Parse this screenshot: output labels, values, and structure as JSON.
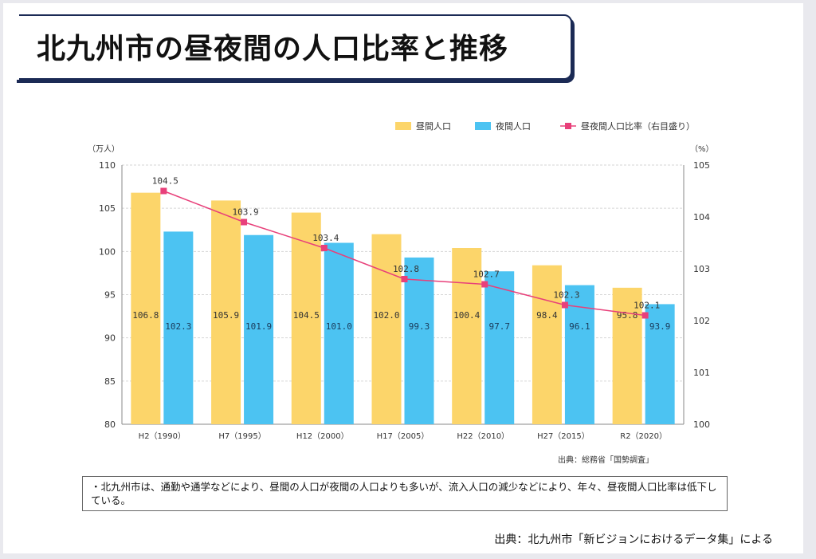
{
  "title": "北九州市の昼夜間の人口比率と推移",
  "chart_data": {
    "type": "bar+line",
    "categories": [
      "H2（1990）",
      "H7（1995）",
      "H12（2000）",
      "H17（2005）",
      "H22（2010）",
      "H27（2015）",
      "R2（2020）"
    ],
    "series": [
      {
        "name": "昼間人口",
        "kind": "bar",
        "axis": "left",
        "color": "#fcd56a",
        "values": [
          106.8,
          105.9,
          104.5,
          102.0,
          100.4,
          98.4,
          95.8
        ]
      },
      {
        "name": "夜間人口",
        "kind": "bar",
        "axis": "left",
        "color": "#4cc3f2",
        "values": [
          102.3,
          101.9,
          101.0,
          99.3,
          97.7,
          96.1,
          93.9
        ]
      },
      {
        "name": "昼夜間人口比率（右目盛り）",
        "kind": "line",
        "axis": "right",
        "color": "#e8407a",
        "values": [
          104.5,
          103.9,
          103.4,
          102.8,
          102.7,
          102.3,
          102.1
        ]
      }
    ],
    "left_axis": {
      "unit": "（万人）",
      "min": 80,
      "max": 110,
      "ticks": [
        80,
        85,
        90,
        95,
        100,
        105,
        110
      ]
    },
    "right_axis": {
      "unit": "（%）",
      "min": 100,
      "max": 105,
      "ticks": [
        100,
        101,
        102,
        103,
        104,
        105
      ]
    },
    "grid": true,
    "legend": "top-right",
    "source": "出典：総務省「国勢調査」"
  },
  "note": "・北九州市は、通勤や通学などにより、昼間の人口が夜間の人口よりも多いが、流入人口の減少などにより、年々、昼夜間人口比率は低下している。",
  "footer_source": "出典：北九州市「新ビジョンにおけるデータ集」による"
}
